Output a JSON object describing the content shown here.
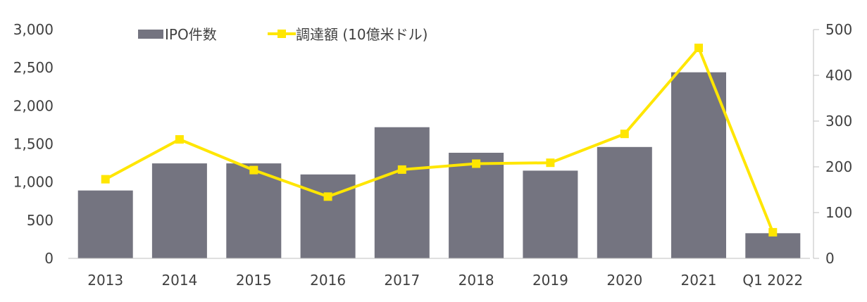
{
  "chart_data": {
    "type": "bar",
    "categories": [
      "2013",
      "2014",
      "2015",
      "2016",
      "2017",
      "2018",
      "2019",
      "2020",
      "2021",
      "Q1 2022"
    ],
    "series": [
      {
        "name": "IPO件数",
        "type": "bar",
        "axis": "left",
        "color": "#747480",
        "values": [
          890,
          1245,
          1245,
          1100,
          1720,
          1385,
          1150,
          1460,
          2440,
          330
        ]
      },
      {
        "name": "調達額 (10億米ドル)",
        "type": "line",
        "axis": "right",
        "color": "#FFE600",
        "values": [
          173,
          260,
          193,
          135,
          194,
          207,
          209,
          272,
          460,
          57
        ]
      }
    ],
    "y_left": {
      "ylim": [
        0,
        3000
      ],
      "ticks": [
        0,
        500,
        1000,
        1500,
        2000,
        2500,
        3000
      ],
      "tick_labels": [
        "0",
        "500",
        "1,000",
        "1,500",
        "2,000",
        "2,500",
        "3,000"
      ]
    },
    "y_right": {
      "ylim": [
        0,
        500
      ],
      "ticks": [
        0,
        100,
        200,
        300,
        400,
        500
      ],
      "tick_labels": [
        "0",
        "100",
        "200",
        "300",
        "400",
        "500"
      ]
    },
    "legend_placement": "top",
    "grid": false
  }
}
